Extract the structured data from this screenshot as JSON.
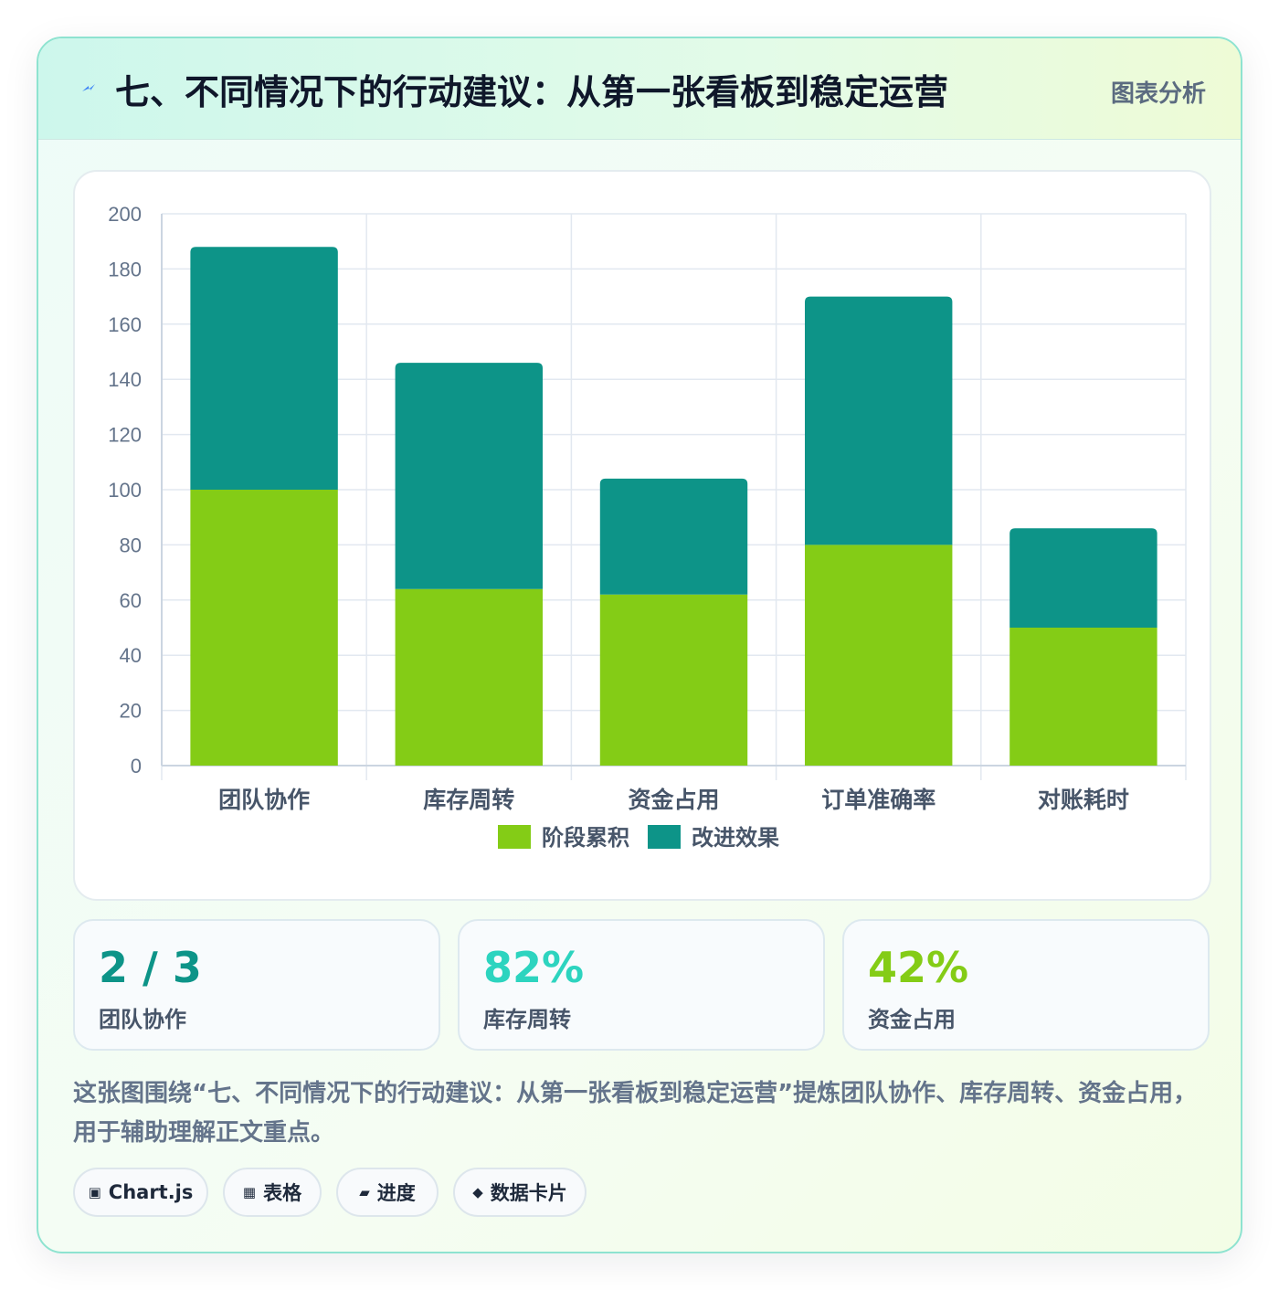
{
  "header": {
    "title": "七、不同情况下的行动建议：从第一张看板到稳定运营",
    "tag": "图表分析"
  },
  "chart_data": {
    "type": "bar",
    "stacked": true,
    "categories": [
      "团队协作",
      "库存周转",
      "资金占用",
      "订单准确率",
      "对账耗时"
    ],
    "series": [
      {
        "name": "阶段累积",
        "color": "#84cc16",
        "values": [
          100,
          64,
          62,
          80,
          50
        ]
      },
      {
        "name": "改进效果",
        "color": "#0d9488",
        "values": [
          88,
          82,
          42,
          90,
          36
        ]
      }
    ],
    "ylim": [
      0,
      200
    ],
    "yticks": [
      0,
      20,
      40,
      60,
      80,
      100,
      120,
      140,
      160,
      180,
      200
    ],
    "grid": true,
    "legend": "bottom"
  },
  "stats": [
    {
      "value": "2 / 3",
      "label": "团队协作",
      "color": "#0d9488"
    },
    {
      "value": "82%",
      "label": "库存周转",
      "color": "#2dd4bf"
    },
    {
      "value": "42%",
      "label": "资金占用",
      "color": "#84cc16"
    }
  ],
  "description": "这张图围绕“七、不同情况下的行动建议：从第一张看板到稳定运营”提炼团队协作、库存周转、资金占用，用于辅助理解正文重点。",
  "pills": [
    {
      "icon": "▣",
      "icon_name": "chart-icon",
      "label": "Chart.js"
    },
    {
      "icon": "▦",
      "icon_name": "table-icon",
      "label": "表格"
    },
    {
      "icon": "▰",
      "icon_name": "progress-icon",
      "label": "进度"
    },
    {
      "icon": "◆",
      "icon_name": "card-icon",
      "label": "数据卡片"
    }
  ]
}
